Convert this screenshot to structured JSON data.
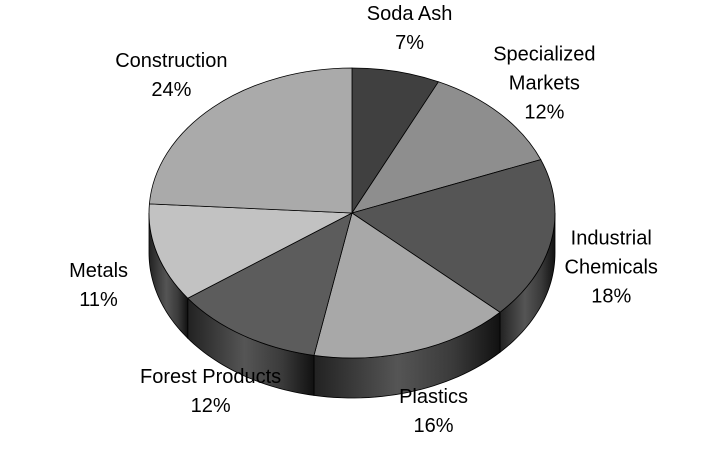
{
  "chart_data": {
    "type": "pie3d",
    "categories": [
      "Soda Ash",
      "Specialized Markets",
      "Industrial Chemicals",
      "Plastics",
      "Forest Products",
      "Metals",
      "Construction"
    ],
    "values": [
      7,
      12,
      18,
      16,
      12,
      11,
      24
    ],
    "value_labels": [
      "7%",
      "12%",
      "18%",
      "16%",
      "12%",
      "11%",
      "24%"
    ],
    "colors": [
      "#404040",
      "#8e8e8e",
      "#555555",
      "#a8a8a8",
      "#5c5c5c",
      "#c2c2c2",
      "#aaaaaa"
    ]
  }
}
